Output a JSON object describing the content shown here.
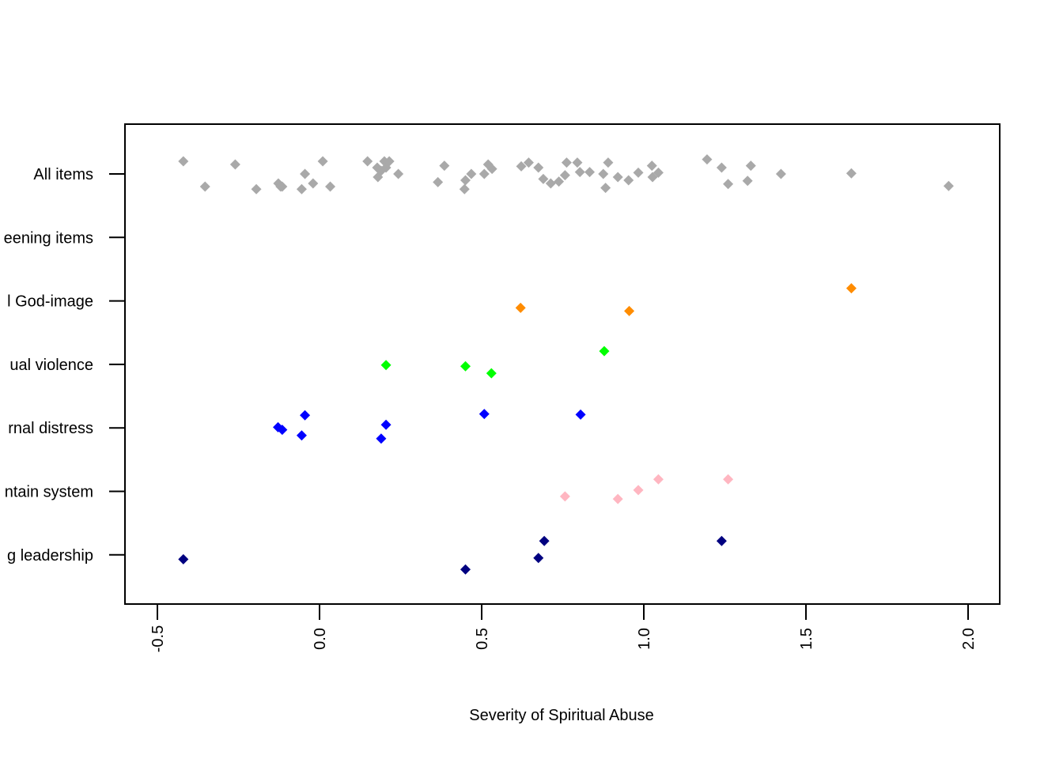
{
  "chart_data": {
    "type": "scatter",
    "title": "",
    "xlabel": "Severity of Spiritual Abuse",
    "ylabel": "",
    "xlim": [
      -0.6,
      2.1
    ],
    "xticks": [
      "-0.5",
      "0.0",
      "0.5",
      "1.0",
      "1.5",
      "2.0"
    ],
    "xtick_values": [
      -0.5,
      0,
      0.5,
      1.0,
      1.5,
      2.0
    ],
    "marker": "filled-diamond",
    "grid": false,
    "legend": "none",
    "categories": [
      "All items",
      "Screening items",
      "Harmful God-image",
      "Spiritual violence",
      "Internal distress",
      "Maintain system",
      "Abusing leadership"
    ],
    "category_tick_labels": [
      "All items",
      "eening items",
      "l God-image",
      "ual violence",
      "rnal distress",
      "ntain system",
      "g leadership"
    ],
    "series": [
      {
        "color": "#A9A9A9",
        "category_index": 0,
        "x": [
          -0.42,
          -0.353,
          -0.26,
          -0.195,
          -0.127,
          -0.12,
          -0.115,
          -0.055,
          -0.045,
          -0.02,
          0.01,
          0.033,
          0.148,
          0.178,
          0.18,
          0.19,
          0.2,
          0.205,
          0.215,
          0.243,
          0.365,
          0.385,
          0.447,
          0.45,
          0.468,
          0.508,
          0.52,
          0.532,
          0.622,
          0.645,
          0.675,
          0.69,
          0.713,
          0.738,
          0.757,
          0.762,
          0.795,
          0.803,
          0.833,
          0.875,
          0.882,
          0.89,
          0.92,
          0.953,
          0.983,
          1.025,
          1.027,
          1.045,
          1.195,
          1.24,
          1.26,
          1.32,
          1.33,
          1.423,
          1.64,
          1.94
        ],
        "y": [
          0.2,
          -0.2,
          0.15,
          -0.24,
          -0.15,
          -0.2,
          -0.2,
          -0.24,
          0.0,
          -0.15,
          0.2,
          -0.2,
          0.2,
          0.1,
          -0.05,
          0.05,
          0.2,
          0.1,
          0.2,
          0.0,
          -0.13,
          0.13,
          -0.24,
          -0.1,
          0.0,
          0.0,
          0.15,
          0.08,
          0.12,
          0.18,
          0.1,
          -0.08,
          -0.15,
          -0.12,
          -0.02,
          0.18,
          0.18,
          0.03,
          0.03,
          0.0,
          -0.22,
          0.18,
          -0.05,
          -0.1,
          0.02,
          0.13,
          -0.05,
          0.02,
          0.23,
          0.1,
          -0.16,
          -0.11,
          0.13,
          0.0,
          0.01,
          -0.19
        ]
      },
      {
        "color": "#FF8C00",
        "category_index": 2,
        "x": [
          0.62,
          0.955,
          1.64
        ],
        "y": [
          -0.11,
          -0.16,
          0.2
        ]
      },
      {
        "color": "#00FF00",
        "category_index": 3,
        "x": [
          0.205,
          0.45,
          0.53,
          0.878
        ],
        "y": [
          -0.01,
          -0.03,
          -0.14,
          0.21
        ]
      },
      {
        "color": "#0000FF",
        "category_index": 4,
        "x": [
          -0.128,
          -0.115,
          -0.055,
          -0.045,
          0.19,
          0.205,
          0.508,
          0.805
        ],
        "y": [
          0.01,
          -0.03,
          -0.12,
          0.2,
          -0.17,
          0.05,
          0.22,
          0.21
        ]
      },
      {
        "color": "#FFB6C1",
        "category_index": 5,
        "x": [
          0.757,
          0.92,
          0.983,
          1.045,
          1.26
        ],
        "y": [
          -0.08,
          -0.12,
          0.02,
          0.19,
          0.19
        ]
      },
      {
        "color": "#000080",
        "category_index": 6,
        "x": [
          -0.42,
          0.45,
          0.675,
          0.693,
          1.24
        ],
        "y": [
          -0.07,
          -0.23,
          -0.05,
          0.22,
          0.22
        ]
      }
    ]
  }
}
